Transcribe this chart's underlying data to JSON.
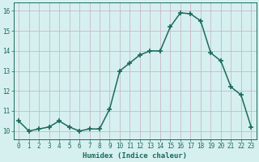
{
  "x": [
    0,
    1,
    2,
    3,
    4,
    5,
    6,
    7,
    8,
    9,
    10,
    11,
    12,
    13,
    14,
    15,
    16,
    17,
    18,
    19,
    20,
    21,
    22,
    23
  ],
  "y": [
    10.5,
    10.0,
    10.1,
    10.2,
    10.5,
    10.2,
    10.0,
    10.1,
    10.1,
    11.1,
    13.0,
    13.4,
    13.8,
    14.0,
    14.0,
    15.2,
    15.9,
    15.85,
    15.5,
    13.9,
    13.5,
    12.2,
    11.8,
    10.2
  ],
  "xlabel": "Humidex (Indice chaleur)",
  "ylabel": "",
  "xlim": [
    -0.5,
    23.5
  ],
  "ylim": [
    9.6,
    16.4
  ],
  "yticks": [
    10,
    11,
    12,
    13,
    14,
    15,
    16
  ],
  "xticks": [
    0,
    1,
    2,
    3,
    4,
    5,
    6,
    7,
    8,
    9,
    10,
    11,
    12,
    13,
    14,
    15,
    16,
    17,
    18,
    19,
    20,
    21,
    22,
    23
  ],
  "line_color": "#1a6b5a",
  "marker": "+",
  "marker_size": 4,
  "marker_lw": 1.2,
  "line_width": 1.1,
  "bg_color": "#d6f0ef",
  "grid_color": "#c8b8c8",
  "axes_color": "#1a6b5a",
  "tick_label_color": "#1a6b5a",
  "xlabel_color": "#1a6b5a",
  "tick_fontsize": 5.5,
  "xlabel_fontsize": 6.5
}
